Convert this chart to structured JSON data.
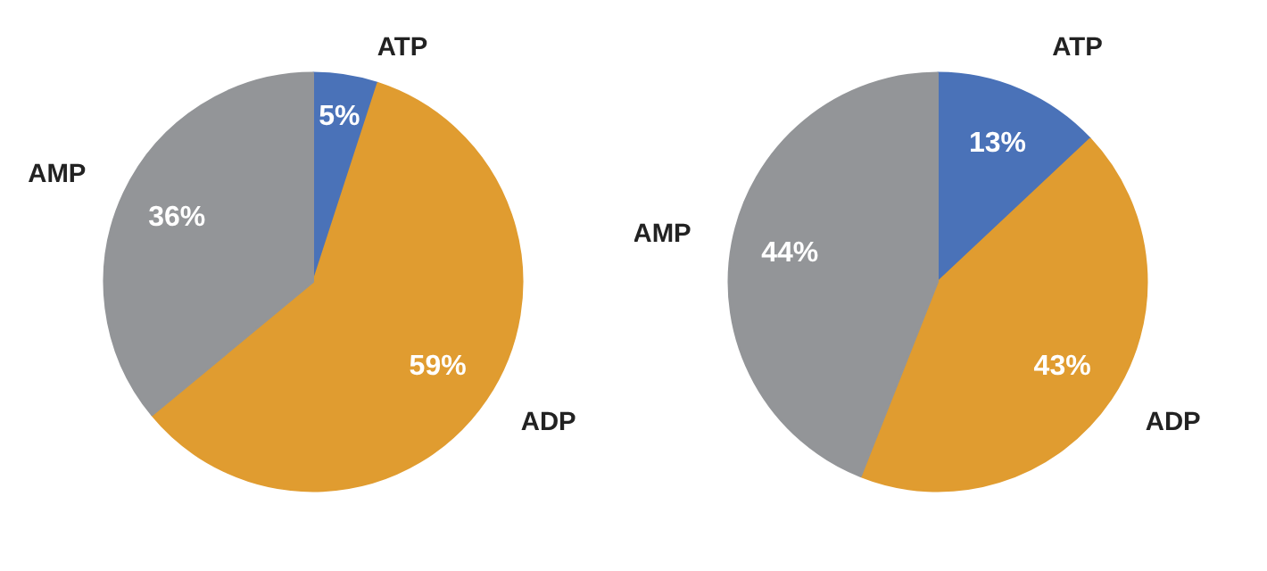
{
  "chart_data": [
    {
      "type": "pie",
      "categories": [
        "ATP",
        "ADP",
        "AMP"
      ],
      "values": [
        5,
        59,
        36
      ],
      "value_labels": [
        "5%",
        "59%",
        "36%"
      ],
      "colors": [
        "#4a72b8",
        "#e09c30",
        "#939598"
      ]
    },
    {
      "type": "pie",
      "categories": [
        "ATP",
        "ADP",
        "AMP"
      ],
      "values": [
        13,
        43,
        44
      ],
      "value_labels": [
        "13%",
        "43%",
        "44%"
      ],
      "colors": [
        "#4a72b8",
        "#e09c30",
        "#939598"
      ]
    }
  ]
}
